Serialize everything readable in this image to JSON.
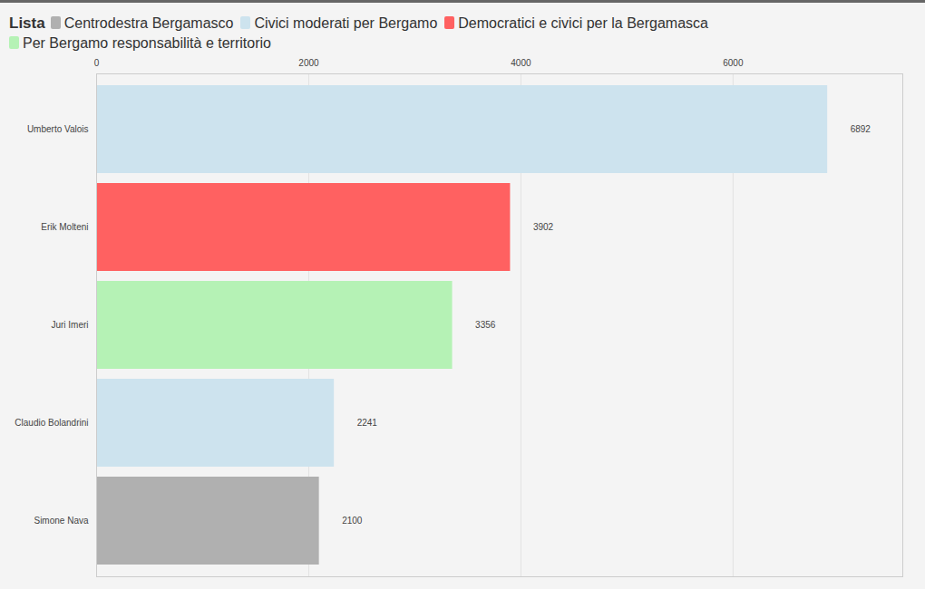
{
  "chart_data": {
    "type": "bar",
    "orientation": "horizontal",
    "legend_title": "Lista",
    "lists": [
      {
        "name": "Centrodestra Bergamasco",
        "color": "#b0b0b0"
      },
      {
        "name": "Civici moderati per Bergamo",
        "color": "#cde3ee"
      },
      {
        "name": "Democratici e civici per la Bergamasca",
        "color": "#ff6161"
      },
      {
        "name": "Per Bergamo responsabilità e territorio",
        "color": "#b5f2b5"
      }
    ],
    "categories": [
      "Umberto Valois",
      "Erik Molteni",
      "Juri Imeri",
      "Claudio Bolandrini",
      "Simone Nava"
    ],
    "values": [
      6892,
      3902,
      3356,
      2241,
      2100
    ],
    "bar_lists": [
      "Civici moderati per Bergamo",
      "Democratici e civici per la Bergamasca",
      "Per Bergamo responsabilità e territorio",
      "Civici moderati per Bergamo",
      "Centrodestra Bergamasco"
    ],
    "xlim": [
      0,
      7600
    ],
    "xticks": [
      0,
      2000,
      4000,
      6000
    ],
    "grid": true,
    "data_labels": true,
    "legend": "top"
  }
}
